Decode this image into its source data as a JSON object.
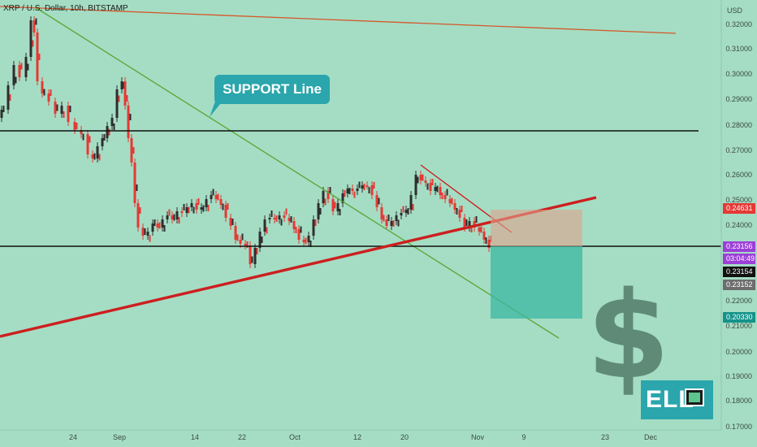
{
  "header": {
    "ticker": "XRP / U.S. Dollar, 10h, BITSTAMP"
  },
  "annotation": {
    "callout": "SUPPORT Line"
  },
  "watermark": {
    "symbol": "$",
    "logo_text": "ELL"
  },
  "price_axis": {
    "currency": "USD",
    "ticks": [
      "0.32000",
      "0.31000",
      "0.30000",
      "0.29000",
      "0.28000",
      "0.27000",
      "0.26000",
      "0.25000",
      "0.24000",
      "0.22000",
      "0.21000",
      "0.20000",
      "0.19000",
      "0.18000",
      "0.17000"
    ]
  },
  "time_axis": {
    "ticks": [
      "24",
      "Sep",
      "14",
      "22",
      "Oct",
      "12",
      "20",
      "Nov",
      "9",
      "23",
      "Dec"
    ]
  },
  "price_tags": [
    {
      "label": "0.24631",
      "color": "#e53935"
    },
    {
      "label": "0.23156",
      "color": "#9c3fd8"
    },
    {
      "label": "03:04:49",
      "color": "#9c3fd8"
    },
    {
      "label": "0.23154",
      "color": "#111111"
    },
    {
      "label": "0.23152",
      "color": "#6d6d6d"
    },
    {
      "label": "0.20330",
      "color": "#15938a"
    }
  ],
  "colors": {
    "up": "#2e2e2e",
    "down": "#e53935",
    "bg": "#a5ddc4",
    "support": "#cc1f1f",
    "trend_green": "#5aa93a"
  }
}
